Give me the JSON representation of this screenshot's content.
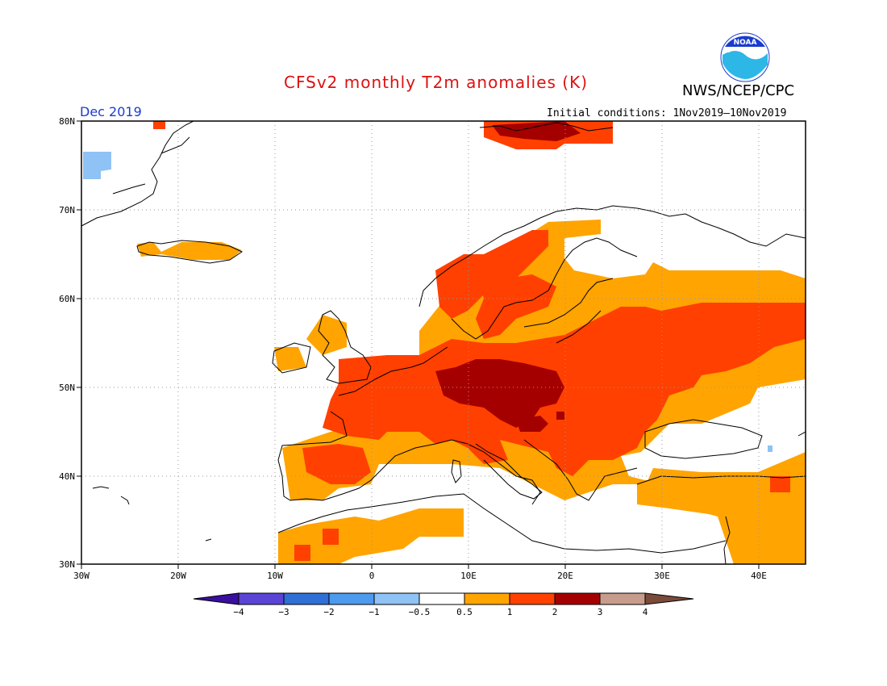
{
  "title": "CFSv2 monthly T2m anomalies (K)",
  "agency": "NWS/NCEP/CPC",
  "logo_text": "NOAA",
  "month": "Dec 2019",
  "initial_conditions": "Initial conditions: 1Nov2019–10Nov2019",
  "lat_labels": [
    "80N",
    "70N",
    "60N",
    "50N",
    "40N",
    "30N"
  ],
  "lon_labels": [
    "30W",
    "20W",
    "10W",
    "0",
    "10E",
    "20E",
    "30E",
    "40E"
  ],
  "colorbar": {
    "labels": [
      "−4",
      "−3",
      "−2",
      "−1",
      "−0.5",
      "0.5",
      "1",
      "2",
      "3",
      "4"
    ],
    "colors": [
      "#3a0fa0",
      "#5a44d6",
      "#2f6fd6",
      "#4d9aee",
      "#8fc2f5",
      "#ffffff",
      "#ffa400",
      "#ff4000",
      "#a50000",
      "#c89c8c",
      "#7a4a3a"
    ]
  },
  "anomaly_regions": [
    {
      "name": "europe-warm-1-2K",
      "level": "1 to 2"
    },
    {
      "name": "central-europe-2-3K",
      "level": "2 to 3"
    },
    {
      "name": "iberia-n-africa-0.5-1K",
      "level": "0.5 to 1"
    },
    {
      "name": "greenland-cold",
      "level": "-1 to -0.5"
    }
  ]
}
